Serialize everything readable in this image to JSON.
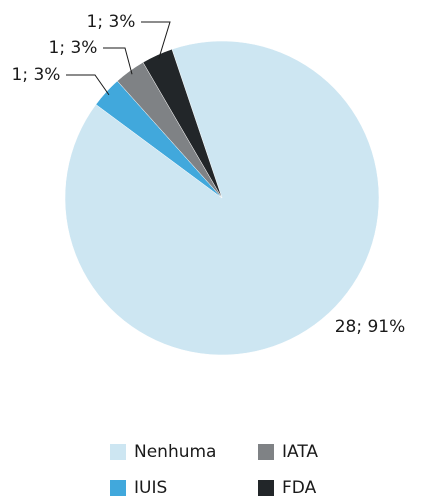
{
  "chart_data": {
    "type": "pie",
    "categories": [
      "Nenhuma",
      "IUIS",
      "IATA",
      "FDA"
    ],
    "values": [
      28,
      1,
      1,
      1
    ],
    "value_labels": [
      "28; 91%",
      "1; 3%",
      "1; 3%",
      "1; 3%"
    ],
    "colors": [
      "#cde6f2",
      "#41a8dc",
      "#7f8285",
      "#222629"
    ],
    "legend": "bottom"
  }
}
